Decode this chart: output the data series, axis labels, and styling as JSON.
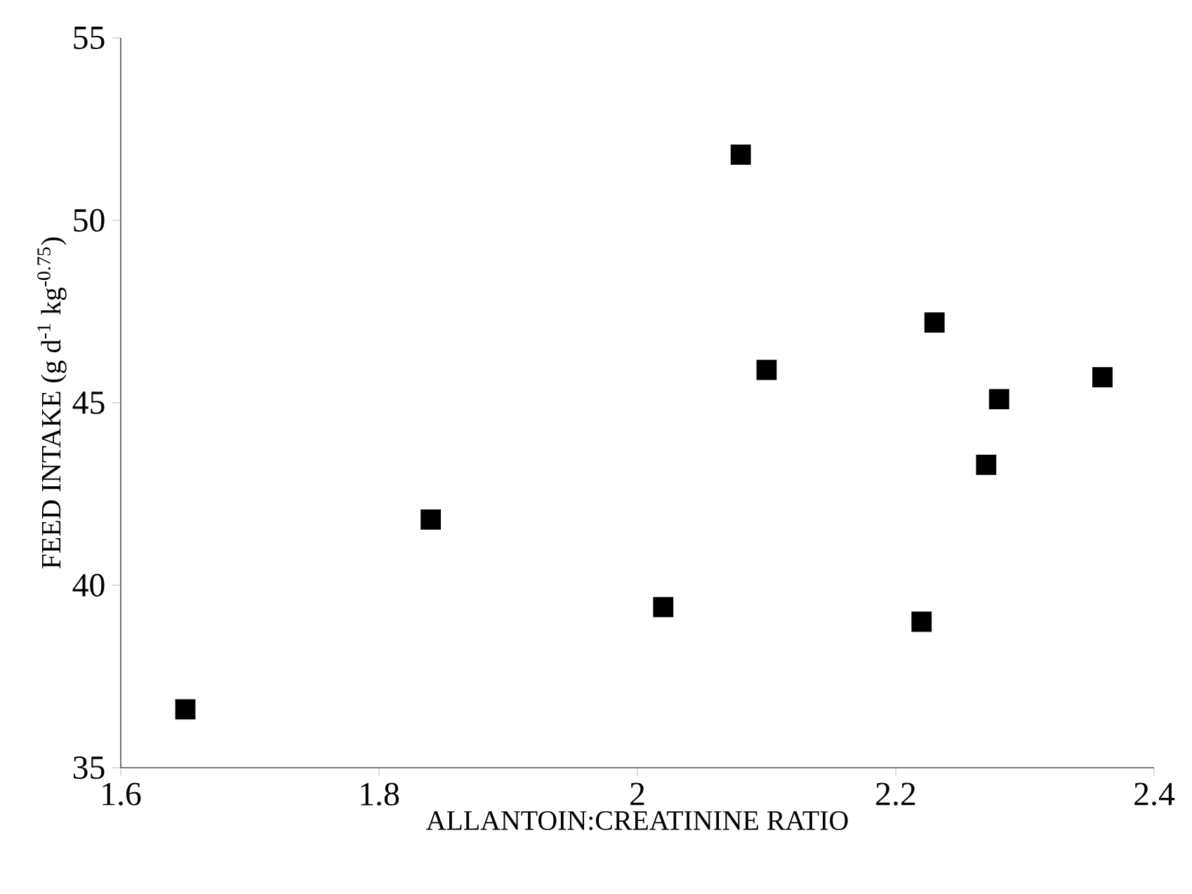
{
  "chart_data": {
    "type": "scatter",
    "xlabel": "ALLANTOIN:CREATININE RATIO",
    "ylabel": "FEED INTAKE (g d$^{-1}$ kg$^{-0.75}$)",
    "x": [
      1.65,
      1.84,
      2.02,
      2.08,
      2.1,
      2.23,
      2.22,
      2.27,
      2.28,
      2.36
    ],
    "series": [
      {
        "color": "#000000",
        "values": [
          36.6,
          41.8,
          39.4,
          51.8,
          45.9,
          47.2,
          39.0,
          43.3,
          45.1,
          45.7
        ]
      }
    ],
    "xlim": [
      1.6,
      2.4
    ],
    "ylim": [
      35,
      55
    ],
    "xticks": [
      1.6,
      1.8,
      2,
      2.2,
      2.4
    ],
    "yticks": [
      35,
      40,
      45,
      50,
      55
    ],
    "marker": "square",
    "grid": false
  }
}
